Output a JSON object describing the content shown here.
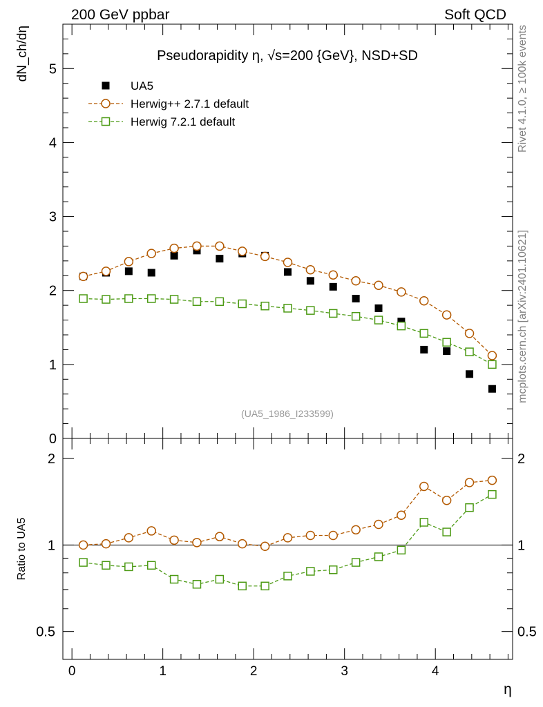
{
  "header": {
    "left_label": "200 GeV ppbar",
    "right_label": "Soft QCD",
    "side_label_top": "Rivet 4.1.0, ≥ 100k events",
    "side_label_bottom": "mcplots.cern.ch [arXiv:2401.10621]"
  },
  "chart_data": [
    {
      "type": "scatter",
      "panel": "main",
      "title": "Pseudorapidity η, √s=200 {GeV}, NSD+SD",
      "ylabel": "dN_ch/dη",
      "xlabel": "η",
      "analysis_tag": "(UA5_1986_I233599)",
      "xlim": [
        -0.1,
        4.85
      ],
      "ylim": [
        0,
        5.6
      ],
      "x_ticks": [
        0,
        1,
        2,
        3,
        4
      ],
      "x_tick_labels": [
        "0",
        "1",
        "2",
        "3",
        "4"
      ],
      "y_ticks": [
        0,
        1,
        2,
        3,
        4,
        5
      ],
      "y_tick_labels": [
        "0",
        "1",
        "2",
        "3",
        "4",
        "5"
      ],
      "legend_position": "top-left",
      "x": [
        0.125,
        0.375,
        0.625,
        0.875,
        1.125,
        1.375,
        1.625,
        1.875,
        2.125,
        2.375,
        2.625,
        2.875,
        3.125,
        3.375,
        3.625,
        3.875,
        4.125,
        4.375,
        4.625
      ],
      "series": [
        {
          "name": "UA5",
          "marker": "filled-square",
          "color": "#000000",
          "values": [
            2.19,
            2.24,
            2.26,
            2.24,
            2.47,
            2.54,
            2.43,
            2.5,
            2.47,
            2.25,
            2.13,
            2.05,
            1.89,
            1.76,
            1.58,
            1.2,
            1.18,
            0.87,
            0.67
          ]
        },
        {
          "name": "Herwig++ 2.7.1 default",
          "marker": "open-circle",
          "color": "#b35900",
          "values": [
            2.19,
            2.26,
            2.39,
            2.5,
            2.57,
            2.6,
            2.6,
            2.53,
            2.46,
            2.38,
            2.28,
            2.21,
            2.13,
            2.07,
            1.98,
            1.86,
            1.67,
            1.42,
            1.12
          ]
        },
        {
          "name": "Herwig 7.2.1 default",
          "marker": "open-square",
          "color": "#4c9a14",
          "values": [
            1.89,
            1.88,
            1.89,
            1.89,
            1.88,
            1.85,
            1.85,
            1.82,
            1.79,
            1.76,
            1.73,
            1.69,
            1.65,
            1.6,
            1.52,
            1.42,
            1.3,
            1.17,
            1.0
          ]
        }
      ]
    },
    {
      "type": "line",
      "panel": "ratio",
      "ylabel": "Ratio to UA5",
      "xlabel": "η",
      "xlim": [
        -0.1,
        4.85
      ],
      "ylim": [
        0.4,
        2.35
      ],
      "y_scale": "log",
      "x_ticks": [
        0,
        1,
        2,
        3,
        4
      ],
      "y_ticks": [
        0.5,
        1,
        2
      ],
      "y_tick_labels": [
        "0.5",
        "1",
        "2"
      ],
      "reference_line": 1,
      "x": [
        0.125,
        0.375,
        0.625,
        0.875,
        1.125,
        1.375,
        1.625,
        1.875,
        2.125,
        2.375,
        2.625,
        2.875,
        3.125,
        3.375,
        3.625,
        3.875,
        4.125,
        4.375,
        4.625
      ],
      "series": [
        {
          "name": "Herwig++ 2.7.1 default",
          "marker": "open-circle",
          "color": "#b35900",
          "values": [
            1.0,
            1.01,
            1.06,
            1.12,
            1.04,
            1.02,
            1.07,
            1.01,
            0.99,
            1.06,
            1.08,
            1.08,
            1.13,
            1.18,
            1.27,
            1.6,
            1.43,
            1.65,
            1.68
          ]
        },
        {
          "name": "Herwig 7.2.1 default",
          "marker": "open-square",
          "color": "#4c9a14",
          "values": [
            0.87,
            0.85,
            0.84,
            0.85,
            0.76,
            0.73,
            0.76,
            0.72,
            0.72,
            0.78,
            0.81,
            0.82,
            0.87,
            0.91,
            0.96,
            1.2,
            1.11,
            1.35,
            1.5
          ]
        }
      ]
    }
  ]
}
